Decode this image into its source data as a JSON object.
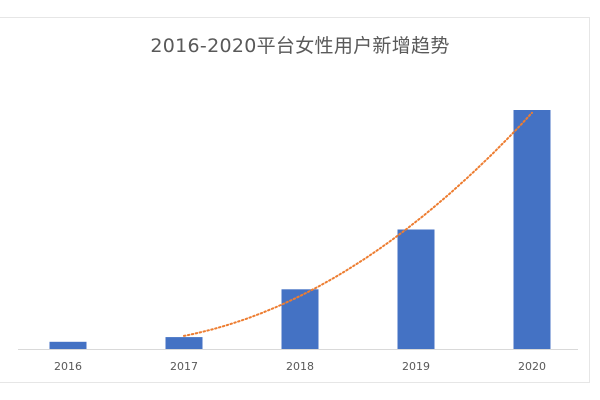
{
  "chart_data": {
    "type": "bar",
    "title": "2016-2020平台女性用户新增趋势",
    "categories": [
      "2016",
      "2017",
      "2018",
      "2019",
      "2020"
    ],
    "values": [
      3,
      5,
      25,
      50,
      100
    ],
    "ylim": [
      0,
      100
    ],
    "grid": false,
    "legend": "none",
    "xlabel": "",
    "ylabel": "",
    "trendline": {
      "type": "polynomial",
      "style": "dotted",
      "color": "#ed7d31"
    },
    "colors": {
      "bar": "#4472c4",
      "trend": "#ed7d31",
      "axis": "#d9d9d9"
    }
  }
}
